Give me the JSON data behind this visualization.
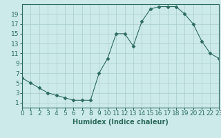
{
  "x": [
    0,
    1,
    2,
    3,
    4,
    5,
    6,
    7,
    8,
    9,
    10,
    11,
    12,
    13,
    14,
    15,
    16,
    17,
    18,
    19,
    20,
    21,
    22,
    23
  ],
  "y": [
    6,
    5,
    4,
    3,
    2.5,
    2,
    1.5,
    1.5,
    1.5,
    7,
    10,
    15,
    15,
    12.5,
    17.5,
    20,
    20.5,
    20.5,
    20.5,
    19,
    17,
    13.5,
    11,
    10
  ],
  "line_color": "#2e6b5e",
  "marker": "D",
  "marker_size": 2.5,
  "bg_color": "#cceaea",
  "grid_color": "#aacccc",
  "xlabel": "Humidex (Indice chaleur)",
  "xlim": [
    0,
    23
  ],
  "ylim": [
    0,
    21
  ],
  "xticks": [
    0,
    1,
    2,
    3,
    4,
    5,
    6,
    7,
    8,
    9,
    10,
    11,
    12,
    13,
    14,
    15,
    16,
    17,
    18,
    19,
    20,
    21,
    22,
    23
  ],
  "yticks": [
    1,
    3,
    5,
    7,
    9,
    11,
    13,
    15,
    17,
    19
  ],
  "xlabel_fontsize": 7,
  "tick_fontsize": 6.5
}
